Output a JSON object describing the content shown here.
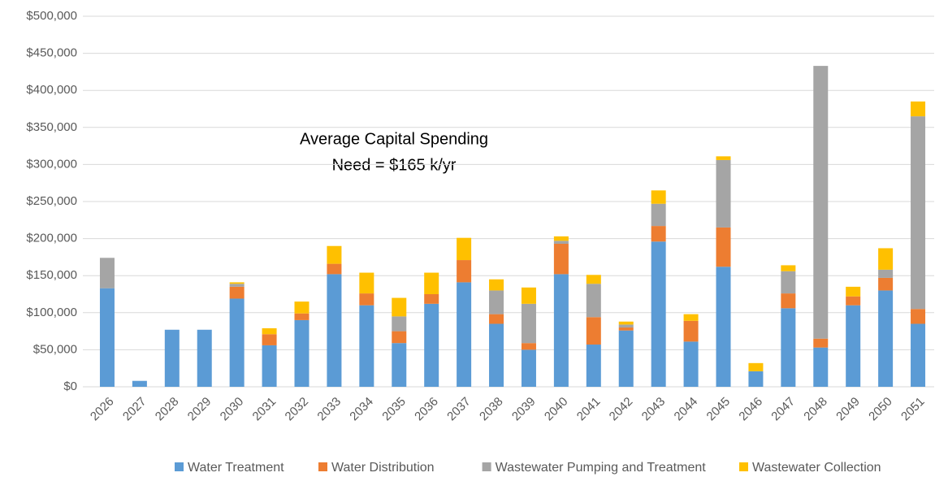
{
  "chart_data": {
    "type": "stacked_bar",
    "annotation": [
      "Average Capital Spending",
      "Need = $165 k/yr"
    ],
    "categories": [
      "2026",
      "2027",
      "2028",
      "2029",
      "2030",
      "2031",
      "2032",
      "2033",
      "2034",
      "2035",
      "2036",
      "2037",
      "2038",
      "2039",
      "2040",
      "2041",
      "2042",
      "2043",
      "2044",
      "2045",
      "2046",
      "2047",
      "2048",
      "2049",
      "2050",
      "2051"
    ],
    "series": [
      {
        "name": "Water Treatment",
        "color": "#5b9bd5",
        "values": [
          133000,
          8000,
          77000,
          77000,
          119000,
          56000,
          90000,
          152000,
          110000,
          59000,
          112000,
          141000,
          85000,
          50000,
          152000,
          57000,
          76000,
          196000,
          61000,
          162000,
          21000,
          106000,
          53000,
          110000,
          130000,
          85000
        ]
      },
      {
        "name": "Water Distribution",
        "color": "#ed7d31",
        "values": [
          0,
          0,
          0,
          0,
          16000,
          15000,
          9000,
          14000,
          16000,
          16000,
          13000,
          30000,
          13000,
          9000,
          41000,
          37000,
          4000,
          21000,
          28000,
          53000,
          0,
          20000,
          12000,
          12000,
          17000,
          20000
        ]
      },
      {
        "name": "Wastewater Pumping and Treatment",
        "color": "#a5a5a5",
        "values": [
          41000,
          0,
          0,
          0,
          4000,
          0,
          0,
          0,
          0,
          20000,
          0,
          0,
          32000,
          53000,
          4000,
          45000,
          4000,
          30000,
          0,
          91000,
          0,
          30000,
          368000,
          0,
          11000,
          260000
        ]
      },
      {
        "name": "Wastewater Collection",
        "color": "#ffc000",
        "values": [
          0,
          0,
          0,
          0,
          2000,
          8000,
          16000,
          24000,
          28000,
          25000,
          29000,
          30000,
          15000,
          22000,
          6000,
          12000,
          4000,
          18000,
          9000,
          5000,
          11000,
          8000,
          0,
          13000,
          29000,
          20000
        ]
      }
    ],
    "ylim": [
      0,
      500000
    ],
    "yticks": [
      {
        "value": 0,
        "label": "$0"
      },
      {
        "value": 50000,
        "label": "$50,000"
      },
      {
        "value": 100000,
        "label": "$100,000"
      },
      {
        "value": 150000,
        "label": "$150,000"
      },
      {
        "value": 200000,
        "label": "$200,000"
      },
      {
        "value": 250000,
        "label": "$250,000"
      },
      {
        "value": 300000,
        "label": "$300,000"
      },
      {
        "value": 350000,
        "label": "$350,000"
      },
      {
        "value": 400000,
        "label": "$400,000"
      },
      {
        "value": 450000,
        "label": "$450,000"
      },
      {
        "value": 500000,
        "label": "$500,000"
      }
    ],
    "grid": true,
    "legend": "bottom"
  }
}
